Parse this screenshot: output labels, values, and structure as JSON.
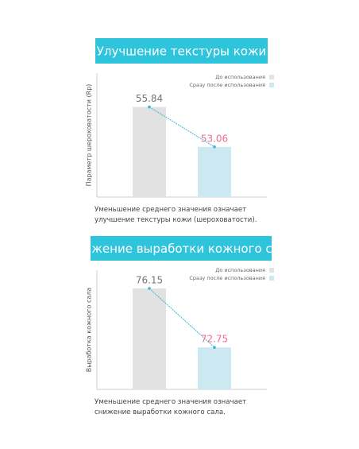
{
  "chart_data": [
    {
      "type": "bar",
      "title": "Улучшение текстуры кожи",
      "ylabel": "Параметр шероховатости (Rp)",
      "series": [
        {
          "name": "До использования",
          "color": "#e2e2e2",
          "values": [
            55.84
          ]
        },
        {
          "name": "Сразу после использования",
          "color": "#cce8f1",
          "values": [
            53.06
          ]
        }
      ],
      "ylim": [
        49.56,
        58.2
      ],
      "caption": "Уменьшение среднего значения означает улучшение текстуры кожи (шероховатости)."
    },
    {
      "type": "bar",
      "title": "Снижение выработки кожного сала",
      "ylabel": "Выработка кожного сала",
      "series": [
        {
          "name": "До использования",
          "color": "#e2e2e2",
          "values": [
            76.15
          ]
        },
        {
          "name": "Сразу после использования",
          "color": "#cce8f1",
          "values": [
            72.75
          ]
        }
      ],
      "ylim": [
        70.33,
        77.2
      ],
      "caption": "Уменьшение среднего значения означает снижение выработки кожного сала."
    }
  ]
}
